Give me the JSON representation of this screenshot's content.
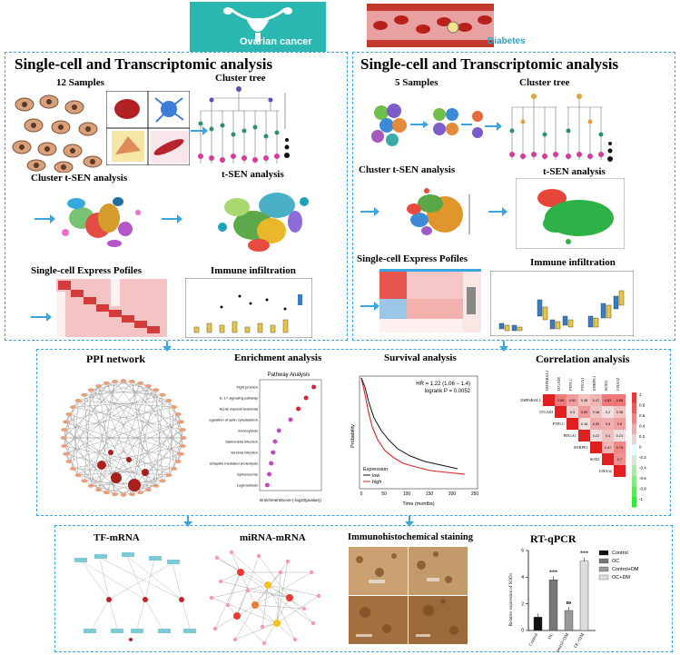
{
  "header": {
    "ovarian_label": "Ovarian cancer",
    "diabetes_label": "Diabetes"
  },
  "left_section": {
    "title": "Single-cell and Transcriptomic analysis",
    "samples": "12 Samples",
    "cluster_tree": "Cluster tree",
    "cluster_tsen": "Cluster t-SEN analysis",
    "tsen": "t-SEN analysis",
    "express": "Single-cell Express Pofiles",
    "immune": "Immune infiltration"
  },
  "right_section": {
    "title": "Single-cell and Transcriptomic analysis",
    "samples": "5 Samples",
    "cluster_tree": "Cluster tree",
    "cluster_tsen": "Cluster t-SEN analysis",
    "tsen": "t-SEN analysis",
    "express": "Single-cell Express Pofiles",
    "immune": "Immune infiltration"
  },
  "middle_section": {
    "ppi": "PPI network",
    "enrichment": "Enrichment analysis",
    "enrichment_subtitle": "Pathway Analysis",
    "enrichment_xlabel": "EnrichmentScore (-log10(pvalue))",
    "enrichment_terms": [
      "Tight junction",
      "IL-17 signaling pathway",
      "Acute myeloid leukemia",
      "Regulation of actin cytoskeleton",
      "Endocytosis",
      "Salmonella infection",
      "Yersinia infection",
      "Ubiquitin mediated proteolysis",
      "Spliceosome",
      "Legionellosis"
    ],
    "survival": "Survival analysis",
    "survival_hr": "HR = 1.22 (1.06 − 1.4)",
    "survival_p": "logrank P = 0.0052",
    "survival_xlabel": "Time (months)",
    "survival_ylabel": "Probability",
    "survival_legend_title": "Expression",
    "survival_low": "low",
    "survival_high": "high",
    "survival_xticks": [
      "0",
      "50",
      "100",
      "150",
      "200",
      "250"
    ],
    "correlation": "Correlation analysis",
    "corr_genes": [
      "DHPSBAL1",
      "ITGAM",
      "PTPLC",
      "PDGA1",
      "SNRPE1",
      "SOD1",
      "UBA32"
    ],
    "corr_values": [
      [
        "0.84",
        "0.62",
        "0.38",
        "0.47",
        "0.83",
        "0.85"
      ],
      [
        "0.3",
        "0.65",
        "0.38",
        "0.2",
        "0.38"
      ],
      [
        "0.18",
        "0.53",
        "0.5",
        "0.6"
      ],
      [
        "0.22",
        "0.4",
        "0.21"
      ],
      [
        "0.47",
        "0.75"
      ],
      [
        "0.7"
      ]
    ],
    "corr_scale": [
      "1",
      "0.8",
      "0.6",
      "0.4",
      "0.2",
      "0",
      "-0.2",
      "-0.4",
      "-0.6",
      "-0.8",
      "-1"
    ]
  },
  "bottom_section": {
    "tf": "TF-mRNA",
    "mirna": "miRNA-mRNA",
    "ihc": "Immunohistochemical staining",
    "rtqpcr": "RT-qPCR",
    "rt_ylabel": "Relative expression of SOD1",
    "rt_legend": [
      "Control",
      "OC",
      "Control+DM",
      "OC+DM"
    ],
    "rt_categories": [
      "Control",
      "OC",
      "Control+DM",
      "OC+DM"
    ],
    "rt_sig": [
      "***",
      "ns",
      "***"
    ]
  },
  "chart_data": {
    "type": "bar",
    "categories": [
      "Control",
      "OC",
      "Control+DM",
      "OC+DM"
    ],
    "values": [
      1.0,
      3.8,
      1.5,
      5.2
    ],
    "ylabel": "Relative expression of SOD1",
    "colors": [
      "#111111",
      "#777777",
      "#999999",
      "#dddddd"
    ],
    "ylim": [
      0,
      6
    ]
  }
}
